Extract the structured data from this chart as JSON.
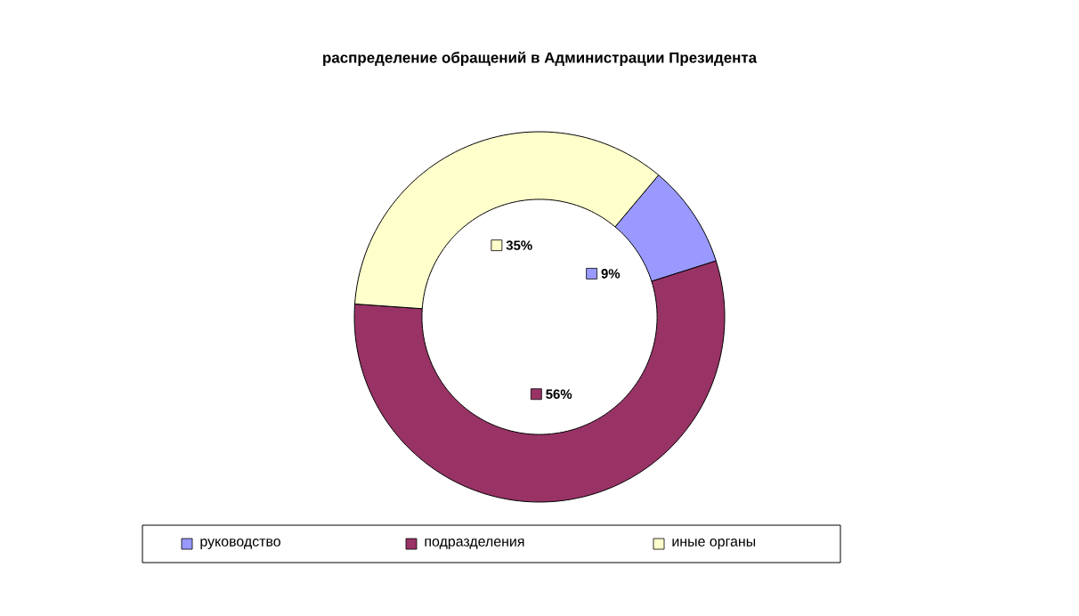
{
  "chart_data": {
    "type": "donut",
    "title": "распределение обращений в Администрации Президента",
    "categories": [
      "руководство",
      "подразделения",
      "иные органы"
    ],
    "values": [
      9,
      56,
      35
    ],
    "value_labels": [
      "9%",
      "56%",
      "35%"
    ],
    "colors": [
      "#9999ff",
      "#993366",
      "#ffffcc"
    ],
    "legend": "bottom"
  }
}
